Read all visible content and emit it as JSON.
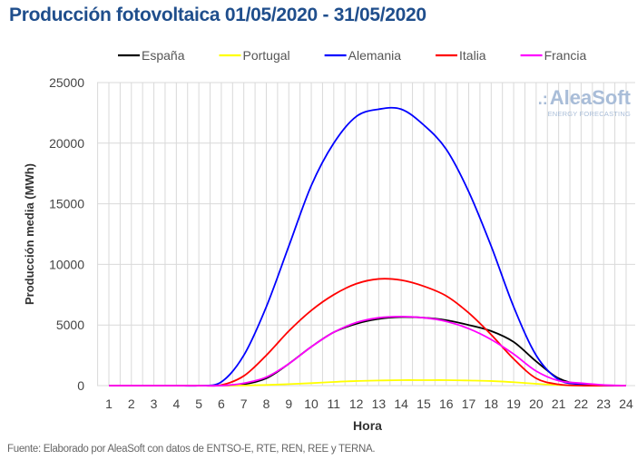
{
  "title": "Producción fotovoltaica 01/05/2020 - 31/05/2020",
  "source": "Fuente: Elaborado por AleaSoft con datos de ENTSO-E, RTE, REN, REE y TERNA.",
  "logo": {
    "name": "AleaSoft",
    "tagline": "ENERGY FORECASTING"
  },
  "chart_data": {
    "type": "line",
    "title": "Producción fotovoltaica 01/05/2020 - 31/05/2020",
    "xlabel": "Hora",
    "ylabel": "Producción media (MWh)",
    "ylim": [
      0,
      25000
    ],
    "yticks": [
      0,
      5000,
      10000,
      15000,
      20000,
      25000
    ],
    "x": [
      1,
      2,
      3,
      4,
      5,
      6,
      7,
      8,
      9,
      10,
      11,
      12,
      13,
      14,
      15,
      16,
      17,
      18,
      19,
      20,
      21,
      22,
      23,
      24
    ],
    "legend": "top",
    "grid": true,
    "series": [
      {
        "name": "España",
        "color": "#000000",
        "values": [
          0,
          0,
          0,
          0,
          0,
          0,
          100,
          600,
          1800,
          3200,
          4400,
          5100,
          5500,
          5650,
          5600,
          5400,
          5000,
          4500,
          3600,
          2000,
          600,
          100,
          0,
          0
        ]
      },
      {
        "name": "Portugal",
        "color": "#ffff00",
        "values": [
          0,
          0,
          0,
          0,
          0,
          0,
          10,
          50,
          120,
          200,
          300,
          380,
          420,
          450,
          450,
          450,
          420,
          380,
          280,
          150,
          50,
          0,
          0,
          0
        ]
      },
      {
        "name": "Alemania",
        "color": "#0000ff",
        "values": [
          0,
          0,
          0,
          0,
          0,
          300,
          2500,
          6500,
          11500,
          16500,
          20000,
          22200,
          22800,
          22800,
          21500,
          19500,
          16000,
          11500,
          6500,
          2500,
          500,
          100,
          0,
          0
        ]
      },
      {
        "name": "Italia",
        "color": "#ff0000",
        "values": [
          0,
          0,
          0,
          0,
          0,
          50,
          800,
          2500,
          4500,
          6200,
          7500,
          8400,
          8800,
          8700,
          8200,
          7400,
          6000,
          4200,
          2200,
          600,
          100,
          0,
          0,
          0
        ]
      },
      {
        "name": "Francia",
        "color": "#ff00ff",
        "values": [
          0,
          0,
          0,
          0,
          0,
          0,
          200,
          700,
          1800,
          3200,
          4400,
          5200,
          5600,
          5700,
          5600,
          5300,
          4700,
          3800,
          2600,
          1200,
          400,
          200,
          50,
          0
        ]
      }
    ]
  }
}
